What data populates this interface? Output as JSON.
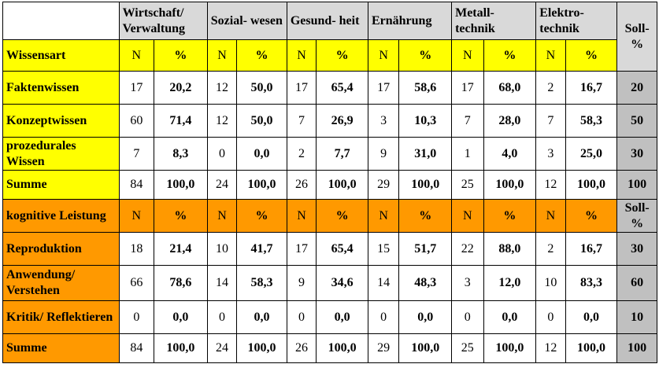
{
  "columns": [
    "Wirtschaft/ Verwaltung",
    "Sozial- wesen",
    "Gesund- heit",
    "Ernährung",
    "Metall- technik",
    "Elektro- technik"
  ],
  "soll_header": "Soll- %",
  "sections": [
    {
      "name": "Wissensart",
      "sub_n": "N",
      "sub_pct": "%",
      "rows": [
        {
          "label": "Faktenwissen",
          "values": [
            [
              "17",
              "20,2"
            ],
            [
              "12",
              "50,0"
            ],
            [
              "17",
              "65,4"
            ],
            [
              "17",
              "58,6"
            ],
            [
              "17",
              "68,0"
            ],
            [
              "2",
              "16,7"
            ]
          ],
          "soll": "20"
        },
        {
          "label": "Konzeptwissen",
          "values": [
            [
              "60",
              "71,4"
            ],
            [
              "12",
              "50,0"
            ],
            [
              "7",
              "26,9"
            ],
            [
              "3",
              "10,3"
            ],
            [
              "7",
              "28,0"
            ],
            [
              "7",
              "58,3"
            ]
          ],
          "soll": "50"
        },
        {
          "label": "prozedurales Wissen",
          "values": [
            [
              "7",
              "8,3"
            ],
            [
              "0",
              "0,0"
            ],
            [
              "2",
              "7,7"
            ],
            [
              "9",
              "31,0"
            ],
            [
              "1",
              "4,0"
            ],
            [
              "3",
              "25,0"
            ]
          ],
          "soll": "30"
        },
        {
          "label": "Summe",
          "values": [
            [
              "84",
              "100,0"
            ],
            [
              "24",
              "100,0"
            ],
            [
              "26",
              "100,0"
            ],
            [
              "29",
              "100,0"
            ],
            [
              "25",
              "100,0"
            ],
            [
              "12",
              "100,0"
            ]
          ],
          "soll": "100"
        }
      ]
    },
    {
      "name": "kognitive Leistung",
      "sub_n": "N",
      "sub_pct": "%",
      "soll_header": "Soll- %",
      "rows": [
        {
          "label": "Reproduktion",
          "values": [
            [
              "18",
              "21,4"
            ],
            [
              "10",
              "41,7"
            ],
            [
              "17",
              "65,4"
            ],
            [
              "15",
              "51,7"
            ],
            [
              "22",
              "88,0"
            ],
            [
              "2",
              "16,7"
            ]
          ],
          "soll": "30"
        },
        {
          "label": "Anwendung/ Verstehen",
          "values": [
            [
              "66",
              "78,6"
            ],
            [
              "14",
              "58,3"
            ],
            [
              "9",
              "34,6"
            ],
            [
              "14",
              "48,3"
            ],
            [
              "3",
              "12,0"
            ],
            [
              "10",
              "83,3"
            ]
          ],
          "soll": "60"
        },
        {
          "label": "Kritik/ Reflektieren",
          "values": [
            [
              "0",
              "0,0"
            ],
            [
              "0",
              "0,0"
            ],
            [
              "0",
              "0,0"
            ],
            [
              "0",
              "0,0"
            ],
            [
              "0",
              "0,0"
            ],
            [
              "0",
              "0,0"
            ]
          ],
          "soll": "10"
        },
        {
          "label": "Summe",
          "values": [
            [
              "84",
              "100,0"
            ],
            [
              "24",
              "100,0"
            ],
            [
              "26",
              "100,0"
            ],
            [
              "29",
              "100,0"
            ],
            [
              "25",
              "100,0"
            ],
            [
              "12",
              "100,0"
            ]
          ],
          "soll": "100"
        }
      ]
    }
  ],
  "colors": {
    "section1": "#ffff00",
    "section2": "#ff9900",
    "header": "#d9d9d9",
    "soll": "#c0c0c0"
  }
}
